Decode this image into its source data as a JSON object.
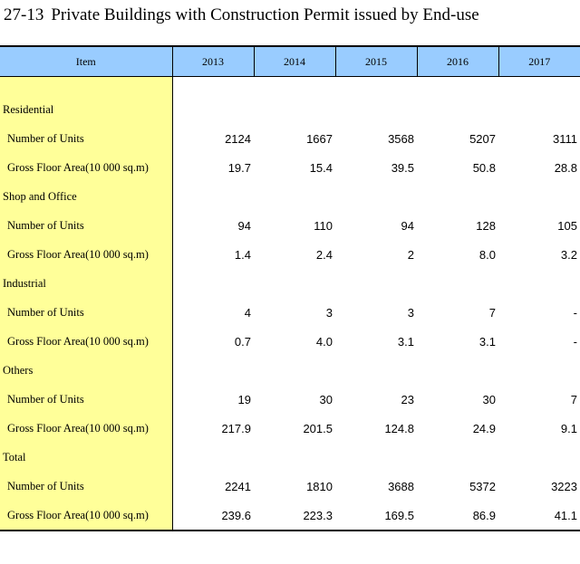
{
  "title": {
    "number": "27-13",
    "text": "Private Buildings with Construction Permit issued by End-use"
  },
  "header": {
    "item_label": "Item",
    "years": [
      "2013",
      "2014",
      "2015",
      "2016",
      "2017"
    ]
  },
  "groups": [
    {
      "name": "Residential",
      "rows": [
        {
          "label": "Number of Units",
          "values": [
            "2124",
            "1667",
            "3568",
            "5207",
            "3111"
          ]
        },
        {
          "label": "Gross Floor Area(10 000 sq.m)",
          "values": [
            "19.7",
            "15.4",
            "39.5",
            "50.8",
            "28.8"
          ]
        }
      ]
    },
    {
      "name": "Shop and Office",
      "rows": [
        {
          "label": "Number of Units",
          "values": [
            "94",
            "110",
            "94",
            "128",
            "105"
          ]
        },
        {
          "label": "Gross Floor Area(10 000 sq.m)",
          "values": [
            "1.4",
            "2.4",
            "2",
            "8.0",
            "3.2"
          ]
        }
      ]
    },
    {
      "name": "Industrial",
      "rows": [
        {
          "label": "Number of Units",
          "values": [
            "4",
            "3",
            "3",
            "7",
            "-"
          ]
        },
        {
          "label": "Gross Floor Area(10 000 sq.m)",
          "values": [
            "0.7",
            "4.0",
            "3.1",
            "3.1",
            "-"
          ]
        }
      ]
    },
    {
      "name": "Others",
      "rows": [
        {
          "label": "Number of Units",
          "values": [
            "19",
            "30",
            "23",
            "30",
            "7"
          ]
        },
        {
          "label": "Gross Floor Area(10 000 sq.m)",
          "values": [
            "217.9",
            "201.5",
            "124.8",
            "24.9",
            "9.1"
          ]
        }
      ]
    },
    {
      "name": "Total",
      "rows": [
        {
          "label": "Number of Units",
          "values": [
            "2241",
            "1810",
            "3688",
            "5372",
            "3223"
          ]
        },
        {
          "label": "Gross Floor Area(10 000 sq.m)",
          "values": [
            "239.6",
            "223.3",
            "169.5",
            "86.9",
            "41.1"
          ]
        }
      ]
    }
  ]
}
